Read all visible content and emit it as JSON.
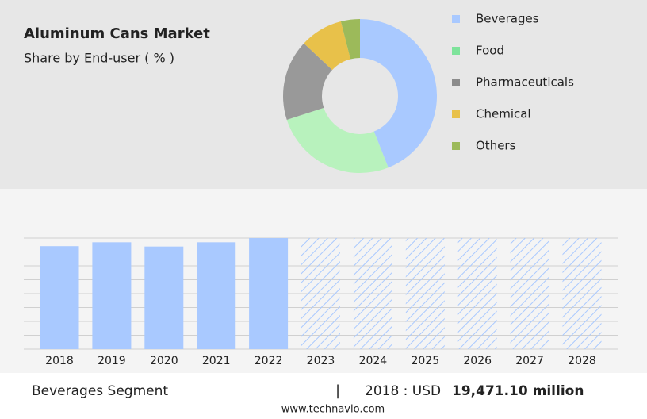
{
  "chart_data": [
    {
      "type": "pie",
      "title": "Aluminum Cans Market",
      "subtitle": "Share by End-user ( % )",
      "categories": [
        "Beverages",
        "Food",
        "Pharmaceuticals",
        "Chemical",
        "Others"
      ],
      "values": [
        44,
        26,
        17,
        9,
        4
      ],
      "colors": [
        "#a9c9ff",
        "#b8f2bd",
        "#999999",
        "#e8c14a",
        "#9cba5a"
      ],
      "legend_colors": [
        "#a9c9ff",
        "#7ee39b",
        "#8c8c8c",
        "#e8c14a",
        "#9cba5a"
      ],
      "donut": true
    },
    {
      "type": "bar",
      "categories": [
        "2018",
        "2019",
        "2020",
        "2021",
        "2022",
        "2023",
        "2024",
        "2025",
        "2026",
        "2027",
        "2028"
      ],
      "values": [
        19471.1,
        20200,
        19400,
        20200,
        21000,
        null,
        null,
        null,
        null,
        null,
        null
      ],
      "color": "#a9c9ff",
      "ylim": [
        0,
        21000
      ],
      "grid": true
    }
  ],
  "footer": {
    "segment": "Beverages Segment",
    "separator": "|",
    "year_label": "2018 : USD",
    "value": "19,471.10 million",
    "source": "www.technavio.com"
  }
}
